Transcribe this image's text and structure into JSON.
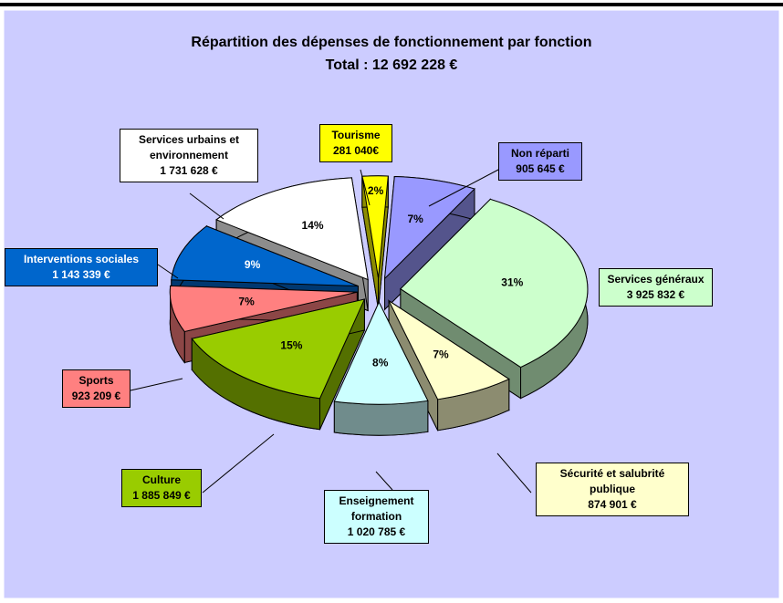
{
  "chart_data": {
    "type": "pie3d",
    "title": "Répartition des dépenses de fonctionnement par fonction",
    "subtitle": "Total : 12 692 228 €",
    "categories": [
      "Non réparti",
      "Services généraux",
      "Sécurité et salubrité publique",
      "Enseignement formation",
      "Culture",
      "Sports",
      "Interventions sociales",
      "Services urbains et environnement",
      "Tourisme"
    ],
    "values": [
      905645,
      3925832,
      874901,
      1020785,
      1885849,
      923209,
      1143339,
      1731628,
      281040
    ],
    "value_labels": [
      "905 645 €",
      "3 925 832 €",
      "874 901 €",
      "1 020 785 €",
      "1 885 849 €",
      "923 209 €",
      "1 143 339 €",
      "1 731 628 €",
      "281 040€"
    ],
    "percent_labels": [
      "7%",
      "31%",
      "7%",
      "8%",
      "15%",
      "7%",
      "9%",
      "14%",
      "2%"
    ],
    "colors": [
      "#9999ff",
      "#ccffcc",
      "#ffffcc",
      "#ccffff",
      "#99cc00",
      "#ff8080",
      "#0066cc",
      "#ffffff",
      "#ffff00"
    ]
  }
}
